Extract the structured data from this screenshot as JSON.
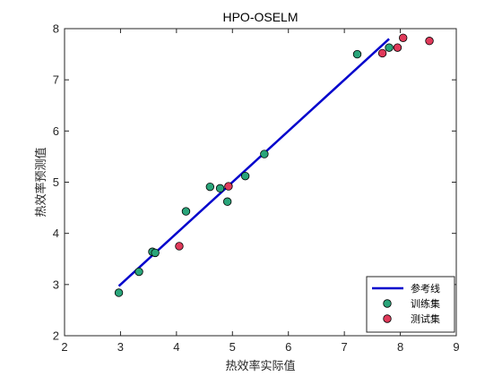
{
  "chart_data": {
    "type": "scatter",
    "title": "HPO-OSELM",
    "xlabel": "热效率实际值",
    "ylabel": "热效率预测值",
    "xlim": [
      2,
      9
    ],
    "ylim": [
      2,
      8
    ],
    "xticks": [
      "2",
      "3",
      "4",
      "5",
      "6",
      "7",
      "8",
      "9"
    ],
    "yticks": [
      "2",
      "3",
      "4",
      "5",
      "6",
      "7",
      "8"
    ],
    "grid": false,
    "legend_position": "bottom-right",
    "reference_line": {
      "name": "参考线",
      "x": [
        2.97,
        7.8
      ],
      "y": [
        2.97,
        7.8
      ],
      "color": "#0000cc"
    },
    "series": [
      {
        "name": "训练集",
        "color": "#2aa57a",
        "points": [
          [
            2.97,
            2.84
          ],
          [
            3.33,
            3.25
          ],
          [
            3.57,
            3.64
          ],
          [
            3.62,
            3.62
          ],
          [
            4.17,
            4.43
          ],
          [
            4.6,
            4.91
          ],
          [
            4.78,
            4.88
          ],
          [
            4.91,
            4.62
          ],
          [
            5.23,
            5.12
          ],
          [
            5.57,
            5.55
          ],
          [
            7.23,
            7.5
          ],
          [
            7.8,
            7.63
          ]
        ]
      },
      {
        "name": "测试集",
        "color": "#e03a5a",
        "points": [
          [
            4.05,
            3.75
          ],
          [
            4.93,
            4.92
          ],
          [
            7.68,
            7.52
          ],
          [
            7.95,
            7.63
          ],
          [
            8.05,
            7.82
          ],
          [
            8.52,
            7.76
          ]
        ]
      }
    ]
  }
}
